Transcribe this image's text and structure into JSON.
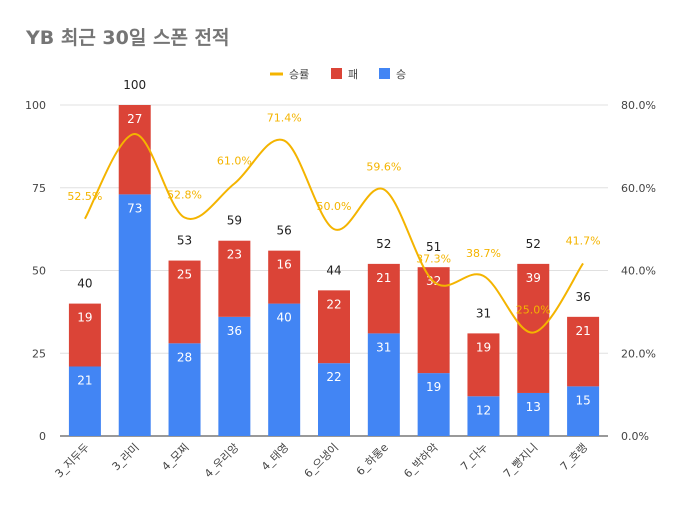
{
  "chart_data": {
    "type": "bar",
    "stacked": true,
    "title": "YB 최근 30일 스폰 전적",
    "categories": [
      "3_지두두",
      "3_라미",
      "4_모찌",
      "4_우리앙",
      "4_태영",
      "6_으냉이",
      "6_하롱e",
      "6_박하악",
      "7_다누",
      "7_빵지니",
      "7_호랭"
    ],
    "series": [
      {
        "name": "승",
        "color": "#4285f4",
        "values": [
          21,
          73,
          28,
          36,
          40,
          22,
          31,
          19,
          12,
          13,
          15
        ]
      },
      {
        "name": "패",
        "color": "#db4437",
        "values": [
          19,
          27,
          25,
          23,
          16,
          22,
          21,
          32,
          19,
          39,
          21
        ]
      }
    ],
    "totals": [
      40,
      100,
      53,
      59,
      56,
      44,
      52,
      51,
      31,
      52,
      36
    ],
    "line_series": {
      "name": "승률",
      "color": "#f4b400",
      "axis": "right",
      "values": [
        52.5,
        73.0,
        52.8,
        61.0,
        71.4,
        50.0,
        59.6,
        37.3,
        38.7,
        25.0,
        41.7
      ],
      "labels": [
        "52.5%",
        "",
        "52.8%",
        "61.0%",
        "71.4%",
        "50.0%",
        "59.6%",
        "37.3%",
        "38.7%",
        "25.0%",
        "41.7%"
      ]
    },
    "legend": {
      "position": "top-right",
      "items": [
        "승률",
        "패",
        "승"
      ]
    },
    "left_axis": {
      "ylim": [
        0,
        100
      ],
      "ticks": [
        "0",
        "25",
        "50",
        "75",
        "100"
      ]
    },
    "right_axis": {
      "ylim": [
        0,
        80
      ],
      "ticks": [
        "0.0%",
        "20.0%",
        "40.0%",
        "60.0%",
        "80.0%"
      ]
    },
    "grid": true
  }
}
